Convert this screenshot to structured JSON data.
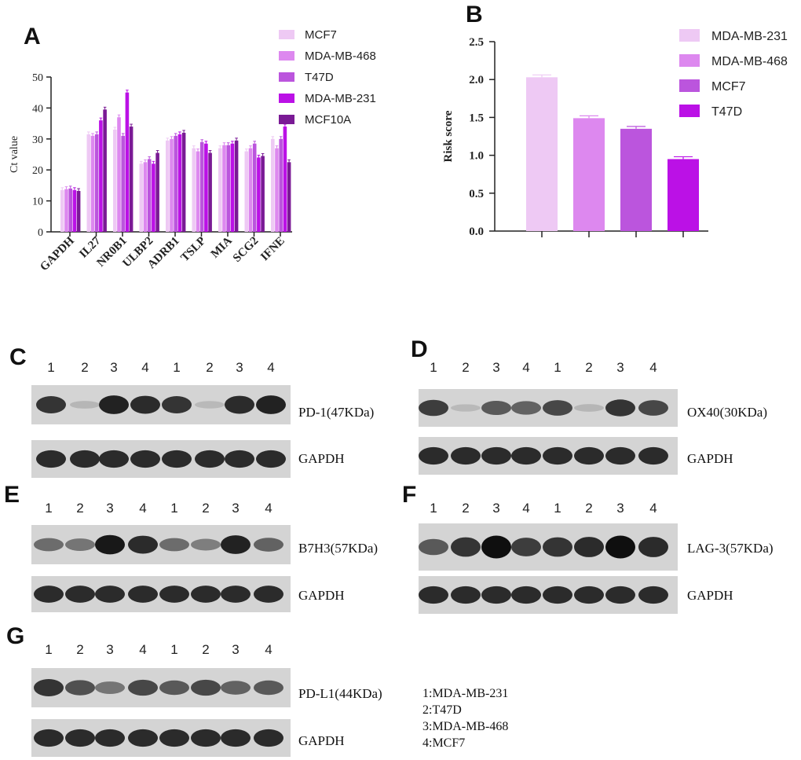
{
  "panels": {
    "A": "A",
    "B": "B",
    "C": "C",
    "D": "D",
    "E": "E",
    "F": "F",
    "G": "G"
  },
  "colors": {
    "c1": "#eec9f4",
    "c2": "#dd88ef",
    "c3": "#bb55dd",
    "c4": "#bb11e6",
    "c5": "#7a1a95"
  },
  "chart_data": [
    {
      "type": "bar",
      "panel": "A",
      "ylabel": "Ct value",
      "ylim": [
        0,
        50
      ],
      "yticks": [
        "0",
        "10",
        "20",
        "30",
        "40",
        "50"
      ],
      "categories": [
        "GAPDH",
        "IL27",
        "NR0B1",
        "ULBP2",
        "ADRB1",
        "TSLP",
        "MIA",
        "SCG2",
        "IFNE"
      ],
      "series": [
        {
          "name": "MCF7",
          "color": "#eec9f4",
          "values": [
            13.5,
            31.5,
            33,
            22,
            29.5,
            27,
            27,
            26,
            30
          ]
        },
        {
          "name": "MDA-MB-468",
          "color": "#dd88ef",
          "values": [
            13.8,
            31,
            37,
            22.5,
            30,
            26,
            28,
            27,
            27
          ]
        },
        {
          "name": "T47D",
          "color": "#bb55dd",
          "values": [
            14,
            31.5,
            31,
            23.5,
            31,
            29,
            28,
            28.5,
            30
          ]
        },
        {
          "name": "MDA-MB-231",
          "color": "#bb11e6",
          "values": [
            13.5,
            36,
            45,
            22,
            31.5,
            28.5,
            28.5,
            24,
            34
          ]
        },
        {
          "name": "MCF10A",
          "color": "#7a1a95",
          "values": [
            13.2,
            39.5,
            34,
            25.5,
            32,
            25.5,
            29.5,
            24.5,
            22.5
          ]
        }
      ],
      "legend": [
        "MCF7",
        "MDA-MB-468",
        "T47D",
        "MDA-MB-231",
        "MCF10A"
      ]
    },
    {
      "type": "bar",
      "panel": "B",
      "ylabel": "Risk score",
      "ylim": [
        0,
        2.5
      ],
      "yticks": [
        "0.0",
        "0.5",
        "1.0",
        "1.5",
        "2.0",
        "2.5"
      ],
      "series": [
        {
          "name": "MDA-MB-231",
          "color": "#eec9f4",
          "values": [
            2.03
          ]
        },
        {
          "name": "MDA-MB-468",
          "color": "#dd88ef",
          "values": [
            1.49
          ]
        },
        {
          "name": "MCF7",
          "color": "#bb55dd",
          "values": [
            1.35
          ]
        },
        {
          "name": "T47D",
          "color": "#bb11e6",
          "values": [
            0.95
          ]
        }
      ],
      "legend": [
        "MDA-MB-231",
        "MDA-MB-468",
        "MCF7",
        "T47D"
      ]
    }
  ],
  "blots": {
    "lanes": [
      "1",
      "2",
      "3",
      "4",
      "1",
      "2",
      "3",
      "4"
    ],
    "C": {
      "protein": "PD-1(47KDa)",
      "control": "GAPDH",
      "intensity": [
        0.8,
        0.1,
        0.9,
        0.85,
        0.8,
        0.08,
        0.85,
        0.9
      ]
    },
    "D": {
      "protein": "OX40(30KDa)",
      "control": "GAPDH",
      "intensity": [
        0.75,
        0.08,
        0.6,
        0.55,
        0.7,
        0.1,
        0.8,
        0.7
      ]
    },
    "E": {
      "protein": "B7H3(57KDa)",
      "control": "GAPDH",
      "intensity": [
        0.5,
        0.45,
        0.95,
        0.85,
        0.5,
        0.4,
        0.9,
        0.55
      ]
    },
    "F": {
      "protein": "LAG-3(57KDa)",
      "control": "GAPDH",
      "intensity": [
        0.6,
        0.8,
        1.0,
        0.75,
        0.8,
        0.85,
        1.0,
        0.85
      ]
    },
    "G": {
      "protein": "PD-L1(44KDa)",
      "control": "GAPDH",
      "intensity": [
        0.8,
        0.65,
        0.45,
        0.7,
        0.6,
        0.7,
        0.55,
        0.6
      ]
    }
  },
  "key": [
    "1:MDA-MB-231",
    "2:T47D",
    "3:MDA-MB-468",
    "4:MCF7"
  ]
}
